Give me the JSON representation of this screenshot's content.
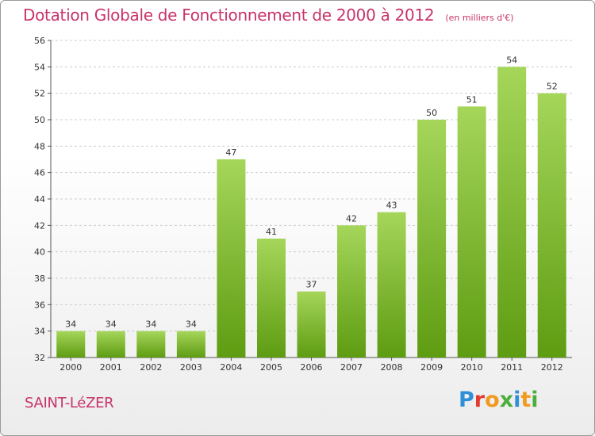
{
  "header": {
    "title": "Dotation Globale de Fonctionnement de 2000 à 2012",
    "unit": "(en milliers d'€)"
  },
  "footer": {
    "commune": "SAINT-LéZER",
    "logo_text": "Proxiti",
    "logo_colors": [
      "#2f8fd8",
      "#e23b2e",
      "#f29a1f",
      "#4cae3c",
      "#2f8fd8",
      "#f29a1f",
      "#4cae3c"
    ]
  },
  "colors": {
    "bar_top": "#a5d65a",
    "bar_bottom": "#5e9c12",
    "grid": "#cccccc",
    "axis": "#555555",
    "title": "#c8336a"
  },
  "chart_data": {
    "type": "bar",
    "categories": [
      "2000",
      "2001",
      "2002",
      "2003",
      "2004",
      "2005",
      "2006",
      "2007",
      "2008",
      "2009",
      "2010",
      "2011",
      "2012"
    ],
    "values": [
      34,
      34,
      34,
      34,
      47,
      41,
      37,
      42,
      43,
      50,
      51,
      54,
      52
    ],
    "title": "Dotation Globale de Fonctionnement de 2000 à 2012",
    "subtitle": "(en milliers d'€)",
    "xlabel": "",
    "ylabel": "",
    "ylim": [
      32,
      56
    ],
    "yticks": [
      32,
      34,
      36,
      38,
      40,
      42,
      44,
      46,
      48,
      50,
      52,
      54,
      56
    ],
    "grid": true,
    "legend": "none"
  }
}
